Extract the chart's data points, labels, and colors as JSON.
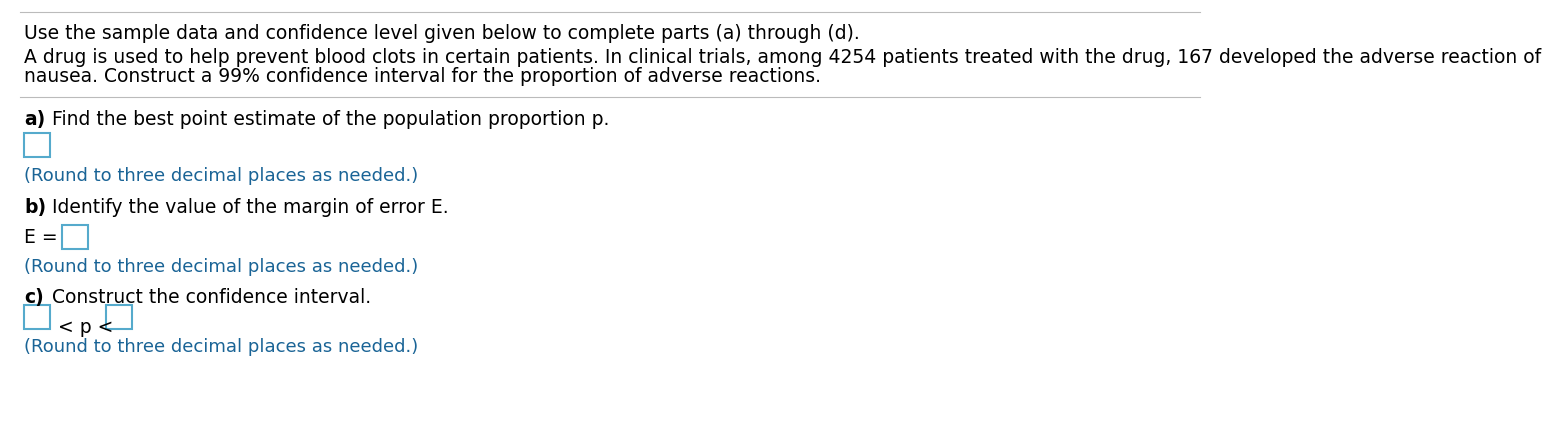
{
  "header_line1": "Use the sample data and confidence level given below to complete parts (a) through (d).",
  "header_line2a": "A drug is used to help prevent blood clots in certain patients. In clinical trials, among 4254 patients treated with the drug, 167 developed the adverse reaction of",
  "header_line2b": "nausea. Construct a 99% confidence interval for the proportion of adverse reactions.",
  "part_a_bold": "a)",
  "part_a_rest": " Find the best point estimate of the population proportion p.",
  "part_a_hint": "(Round to three decimal places as needed.)",
  "part_b_bold": "b)",
  "part_b_rest": " Identify the value of the margin of error E.",
  "part_b_eq": "E = ",
  "part_b_hint": "(Round to three decimal places as needed.)",
  "part_c_bold": "c)",
  "part_c_rest": " Construct the confidence interval.",
  "part_c_middle": " < p < ",
  "part_c_hint": "(Round to three decimal places as needed.)",
  "bg_color": "#ffffff",
  "text_color": "#000000",
  "hint_color": "#1A6496",
  "box_color": "#55AACC",
  "separator_color": "#BBBBBB",
  "font_size_main": 13.5,
  "font_size_hint": 13.0
}
